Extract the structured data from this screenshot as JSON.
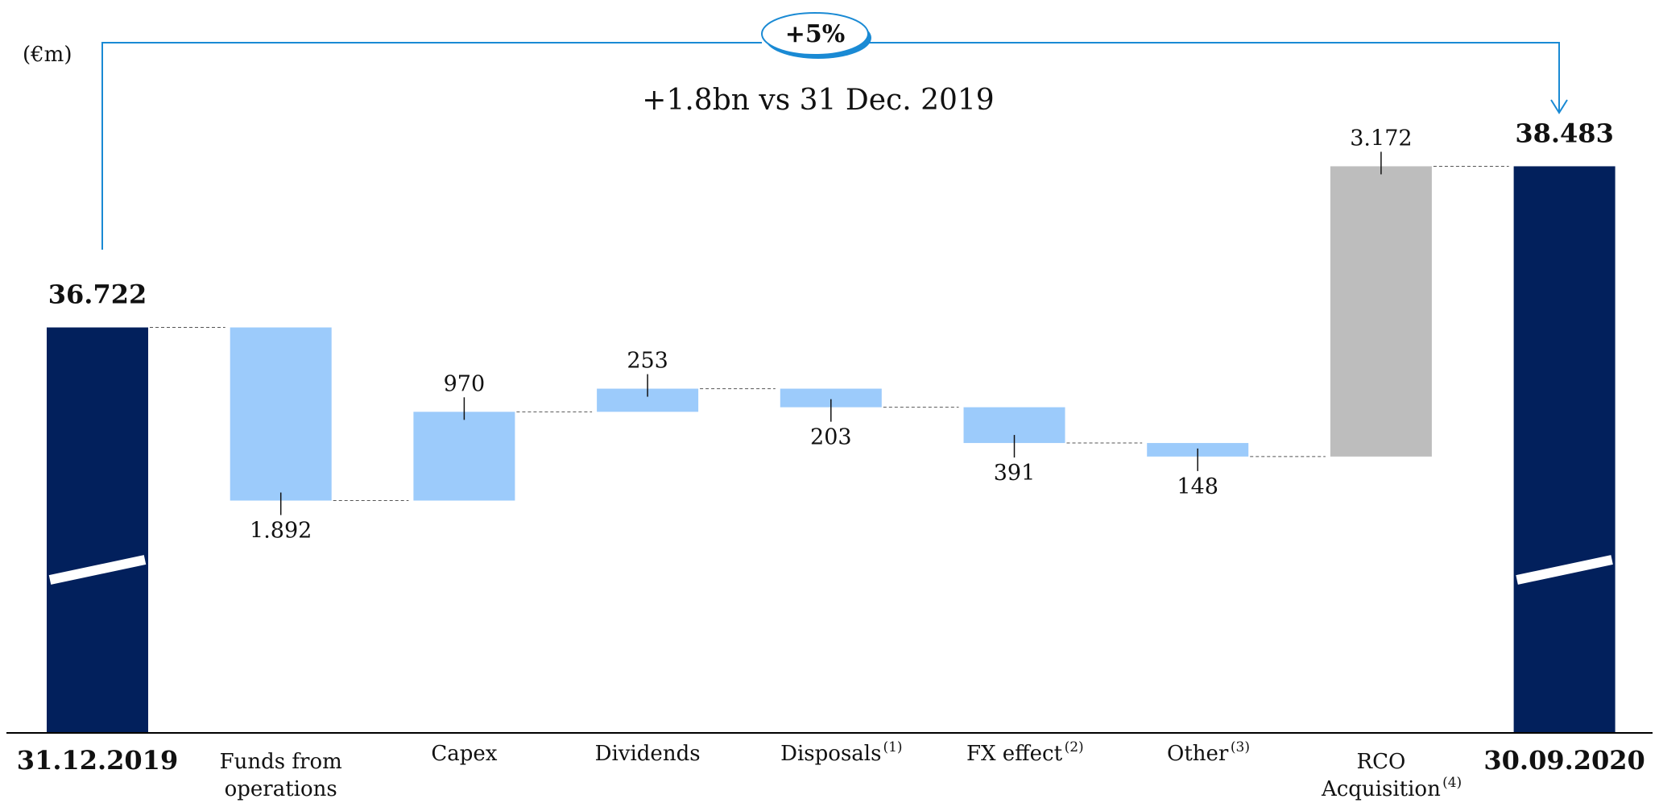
{
  "chart_data": {
    "type": "waterfall",
    "unit_label": "(€m)",
    "badge": "+5%",
    "subtitle": "+1.8bn vs 31 Dec. 2019",
    "categories": [
      "31.12.2019",
      "Funds from operations",
      "Capex",
      "Dividends",
      "Disposals",
      "FX effect",
      "Other",
      "RCO Acquisition",
      "30.09.2020"
    ],
    "notes": [
      null,
      null,
      null,
      null,
      "(1)",
      "(2)",
      "(3)",
      "(4)",
      null
    ],
    "values": [
      36722,
      -1892,
      970,
      253,
      -203,
      -391,
      -148,
      3172,
      38483
    ],
    "value_labels": [
      "36.722",
      "1.892",
      "970",
      "253",
      "203",
      "391",
      "148",
      "3.172",
      "38.483"
    ],
    "colors": [
      "#02205c",
      "#9ccbfb",
      "#9ccbfb",
      "#9ccbfb",
      "#9ccbfb",
      "#9ccbfb",
      "#9ccbfb",
      "#bdbdbd",
      "#02205c"
    ],
    "ylim": [
      32300,
      40300
    ]
  }
}
